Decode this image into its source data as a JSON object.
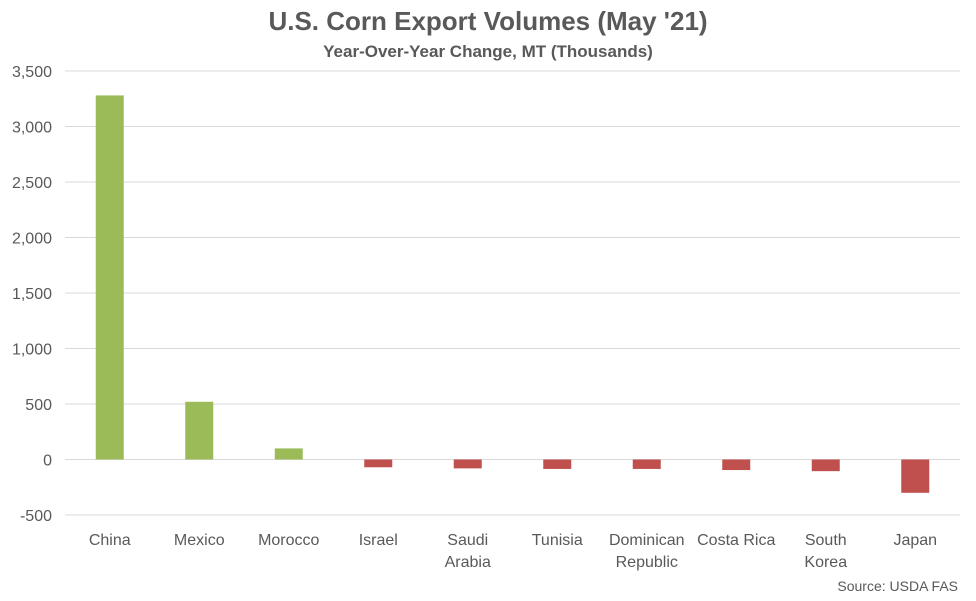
{
  "chart_data": {
    "type": "bar",
    "title": "U.S. Corn Export Volumes (May '21)",
    "subtitle": "Year-Over-Year Change, MT (Thousands)",
    "categories": [
      "China",
      "Mexico",
      "Morocco",
      "Israel",
      "Saudi Arabia",
      "Tunisia",
      "Dominican Republic",
      "Costa Rica",
      "South Korea",
      "Japan"
    ],
    "category_lines": [
      [
        "China"
      ],
      [
        "Mexico"
      ],
      [
        "Morocco"
      ],
      [
        "Israel"
      ],
      [
        "Saudi",
        "Arabia"
      ],
      [
        "Tunisia"
      ],
      [
        "Dominican",
        "Republic"
      ],
      [
        "Costa Rica"
      ],
      [
        "South",
        "Korea"
      ],
      [
        "Japan"
      ]
    ],
    "values": [
      3280,
      520,
      100,
      -70,
      -80,
      -85,
      -85,
      -95,
      -105,
      -300
    ],
    "ylim": [
      -500,
      3500
    ],
    "yticks": [
      -500,
      0,
      500,
      1000,
      1500,
      2000,
      2500,
      3000,
      3500
    ],
    "ytick_labels": [
      "-500",
      "0",
      "500",
      "1,000",
      "1,500",
      "2,000",
      "2,500",
      "3,000",
      "3,500"
    ],
    "grid": true,
    "legend": "none",
    "colors": {
      "positive": "#9BBB59",
      "negative": "#C0504D",
      "grid": "#D9D9D9",
      "text": "#595959"
    },
    "source": "Source: USDA FAS"
  }
}
